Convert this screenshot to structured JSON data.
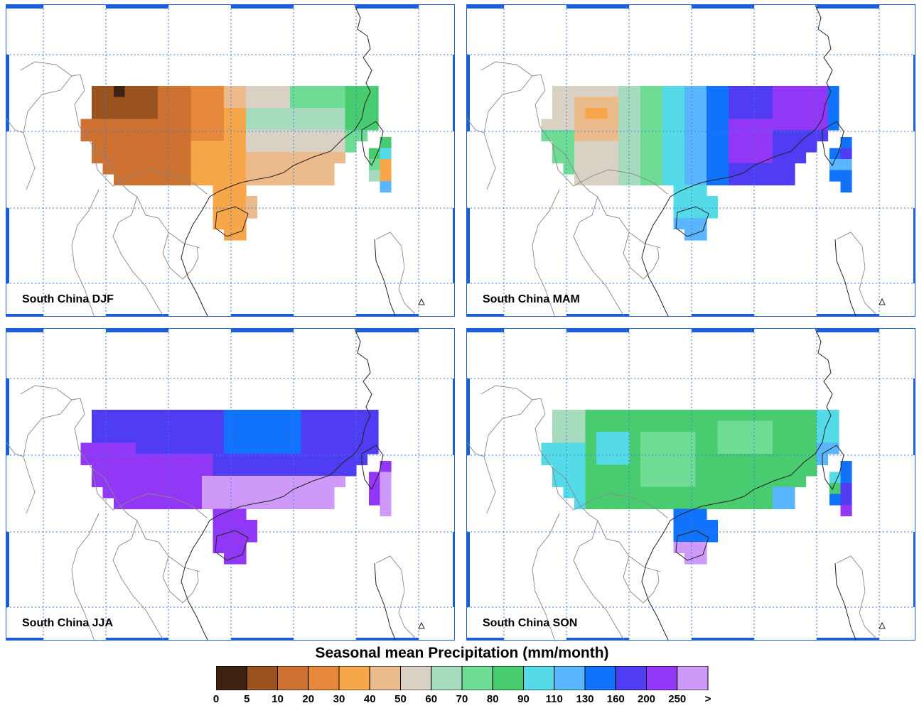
{
  "panels": [
    {
      "id": "djf",
      "label": "South China DJF"
    },
    {
      "id": "mam",
      "label": "South China MAM"
    },
    {
      "id": "jja",
      "label": "South China JJA"
    },
    {
      "id": "son",
      "label": "South China SON"
    }
  ],
  "colorbar": {
    "title": "Seasonal mean Precipitation (mm/month)",
    "colors": [
      "#3e2211",
      "#9a531f",
      "#cd7230",
      "#e6893d",
      "#f7a74a",
      "#ebbb8b",
      "#d8d1c4",
      "#a6dbbd",
      "#6fdc96",
      "#49cc70",
      "#55dbe8",
      "#59b6ff",
      "#1173fb",
      "#4f3cf3",
      "#9337f7",
      "#cf99fa"
    ],
    "labels": [
      "0",
      "5",
      "10",
      "20",
      "30",
      "40",
      "50",
      "60",
      "70",
      "80",
      "90",
      "110",
      "130",
      "160",
      "200",
      "250",
      ">"
    ]
  },
  "colors": {
    "frame": "#1a5fd6",
    "grid": "#3b7be0",
    "border": "#888888",
    "coast": "#222222"
  }
}
